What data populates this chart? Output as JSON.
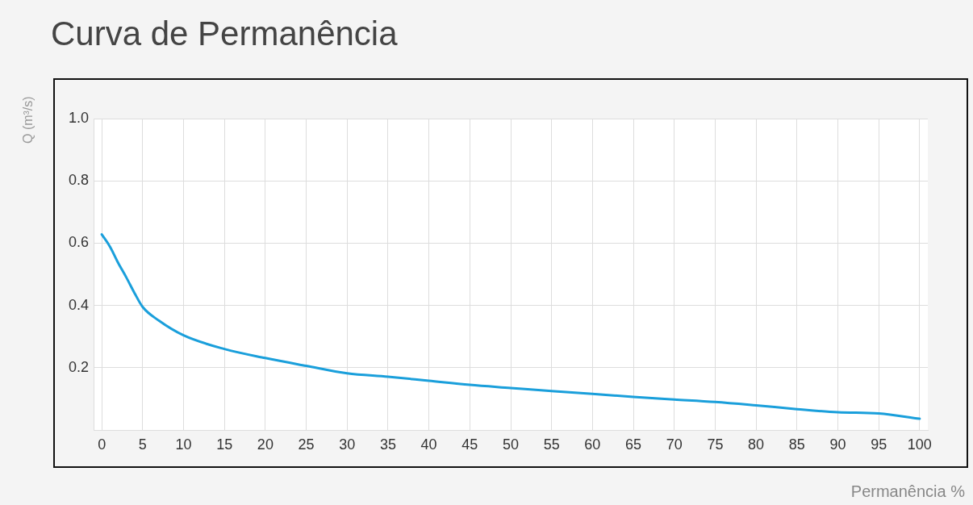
{
  "chart_data": {
    "type": "line",
    "title": "Curva de Permanência",
    "xlabel": "Permanência %",
    "ylabel": "Q (m³/s)",
    "x": [
      0,
      1,
      2,
      3,
      4,
      5,
      7,
      10,
      15,
      20,
      25,
      30,
      35,
      40,
      45,
      50,
      55,
      60,
      65,
      70,
      75,
      80,
      85,
      90,
      95,
      100
    ],
    "series": [
      {
        "color": "#1a9fdb",
        "values": [
          0.628,
          0.589,
          0.537,
          0.49,
          0.44,
          0.395,
          0.351,
          0.304,
          0.26,
          0.231,
          0.206,
          0.182,
          0.171,
          0.158,
          0.145,
          0.135,
          0.125,
          0.116,
          0.106,
          0.098,
          0.09,
          0.079,
          0.067,
          0.057,
          0.053,
          0.036
        ]
      }
    ],
    "xlim": [
      -1,
      101
    ],
    "xticks": [
      0,
      5,
      10,
      15,
      20,
      25,
      30,
      35,
      40,
      45,
      50,
      55,
      60,
      65,
      70,
      75,
      80,
      85,
      90,
      95,
      100
    ],
    "ylim": [
      0,
      1
    ],
    "yticks": [
      0.2,
      0.4,
      0.6,
      0.8,
      {
        "value": 1,
        "label": "1.0"
      }
    ],
    "grid": true,
    "legend": false,
    "marker": "none",
    "line_style": "solid"
  }
}
